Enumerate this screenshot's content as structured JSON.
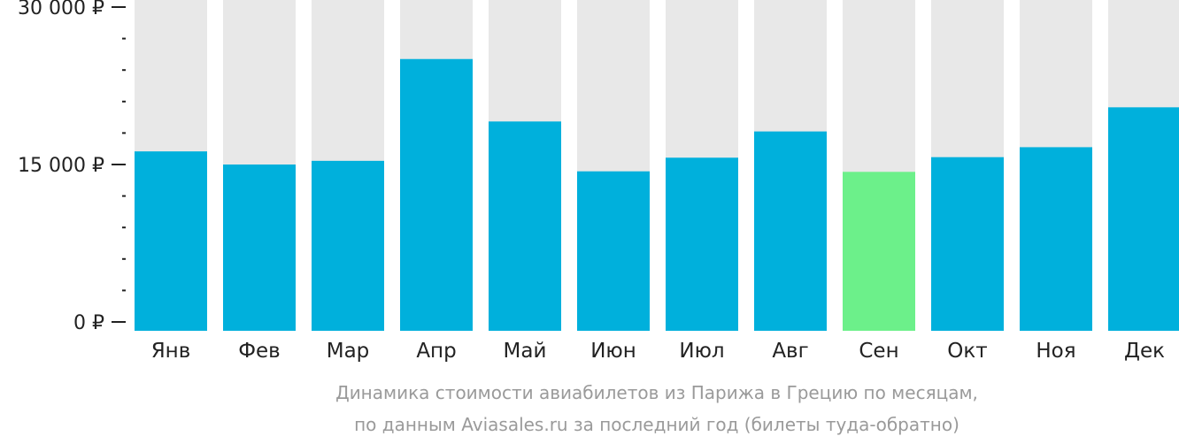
{
  "chart_data": {
    "type": "bar",
    "categories": [
      "Янв",
      "Фев",
      "Мар",
      "Апр",
      "Май",
      "Июн",
      "Июл",
      "Авг",
      "Сен",
      "Окт",
      "Ноя",
      "Дек"
    ],
    "values": [
      16250,
      15000,
      15350,
      25050,
      19100,
      14350,
      15650,
      18150,
      14300,
      15700,
      16650,
      20450
    ],
    "ylim": [
      0,
      30000
    ],
    "yticks": [
      {
        "value": 0,
        "label": "0 ₽"
      },
      {
        "value": 15000,
        "label": "15 000 ₽"
      },
      {
        "value": 30000,
        "label": "30 000 ₽"
      }
    ],
    "minor_tick_step": 3000,
    "highlight_index": 8,
    "grid": false,
    "legend": "none"
  },
  "caption": {
    "line1": "Динамика стоимости авиабилетов из Парижа в Грецию по месяцам,",
    "line2": "по данным Aviasales.ru за последний год (билеты туда-обратно)"
  },
  "colors": {
    "bar": "#00b0dc",
    "bar_highlight": "#6cf08a",
    "bar_background": "#e8e8e8",
    "axis": "#222222",
    "caption": "#9a9a9a"
  }
}
